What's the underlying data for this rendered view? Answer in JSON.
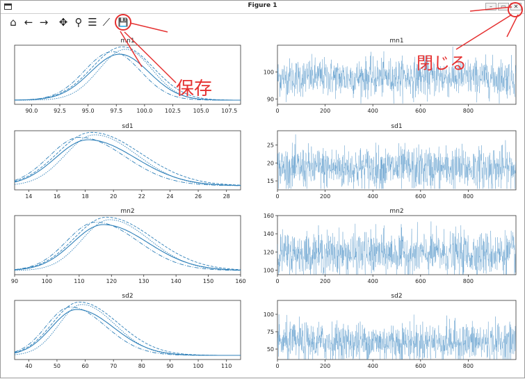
{
  "window": {
    "title": "Figure 1",
    "buttons": [
      "minimize",
      "maximize",
      "close"
    ]
  },
  "toolbar": {
    "items": [
      {
        "name": "home",
        "icon": "home-icon",
        "glyph": "⌂"
      },
      {
        "name": "back",
        "icon": "arrow-left-icon",
        "glyph": "←"
      },
      {
        "name": "forward",
        "icon": "arrow-right-icon",
        "glyph": "→"
      },
      {
        "name": "pan",
        "icon": "move-icon",
        "glyph": "✥"
      },
      {
        "name": "zoom",
        "icon": "zoom-icon",
        "glyph": "⚲"
      },
      {
        "name": "subplots",
        "icon": "sliders-icon",
        "glyph": "☰"
      },
      {
        "name": "edit",
        "icon": "line-chart-icon",
        "glyph": "⟋"
      },
      {
        "name": "save",
        "icon": "save-icon",
        "glyph": "💾"
      }
    ]
  },
  "annotations": {
    "save_label": "保存",
    "close_label": "閉じる",
    "color": "#e53030"
  },
  "chart_data": [
    {
      "type": "line",
      "kind": "density",
      "title": "mn1",
      "xlim": [
        88.5,
        108.5
      ],
      "xticks": [
        "90.0",
        "92.5",
        "95.0",
        "97.5",
        "100.0",
        "102.5",
        "105.0",
        "107.5"
      ],
      "center": 97.8,
      "sd": 2.6
    },
    {
      "type": "line",
      "kind": "trace",
      "title": "mn1",
      "xlim": [
        0,
        1000
      ],
      "ylim": [
        88,
        110
      ],
      "xticks": [
        "0",
        "200",
        "400",
        "600",
        "800"
      ],
      "yticks": [
        "90",
        "100"
      ],
      "center": 98,
      "spread": 3.5
    },
    {
      "type": "line",
      "kind": "density",
      "title": "sd1",
      "xlim": [
        13,
        29
      ],
      "xticks": [
        "14",
        "16",
        "18",
        "20",
        "22",
        "24",
        "26",
        "28"
      ],
      "center": 18.2,
      "sd": 2.3
    },
    {
      "type": "line",
      "kind": "trace",
      "title": "sd1",
      "xlim": [
        0,
        1000
      ],
      "ylim": [
        12.5,
        29
      ],
      "xticks": [
        "0",
        "200",
        "400",
        "600",
        "800"
      ],
      "yticks": [
        "15",
        "20",
        "25"
      ],
      "center": 18.5,
      "spread": 3
    },
    {
      "type": "line",
      "kind": "density",
      "title": "mn2",
      "xlim": [
        90,
        160
      ],
      "xticks": [
        "90",
        "100",
        "110",
        "120",
        "130",
        "140",
        "150",
        "160"
      ],
      "center": 117.5,
      "sd": 9.5
    },
    {
      "type": "line",
      "kind": "trace",
      "title": "mn2",
      "xlim": [
        0,
        1000
      ],
      "ylim": [
        95,
        160
      ],
      "xticks": [
        "0",
        "200",
        "400",
        "600",
        "800"
      ],
      "yticks": [
        "100",
        "120",
        "140",
        "160"
      ],
      "center": 118,
      "spread": 12
    },
    {
      "type": "line",
      "kind": "density",
      "title": "sd2",
      "xlim": [
        35,
        115
      ],
      "xticks": [
        "40",
        "50",
        "60",
        "70",
        "80",
        "90",
        "100",
        "110"
      ],
      "center": 57,
      "sd": 9
    },
    {
      "type": "line",
      "kind": "trace",
      "title": "sd2",
      "xlim": [
        0,
        1000
      ],
      "ylim": [
        35,
        120
      ],
      "xticks": [
        "0",
        "200",
        "400",
        "600",
        "800"
      ],
      "yticks": [
        "50",
        "75",
        "100"
      ],
      "center": 60,
      "spread": 14
    }
  ]
}
